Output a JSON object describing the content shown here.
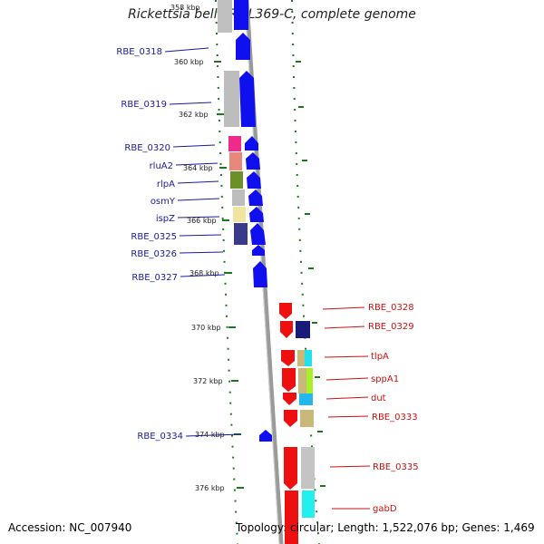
{
  "title": "Rickettsia bellii RML369-C, complete genome",
  "accession_text": "Accession: NC_007940",
  "info_text": "Topology: circular; Length: 1,522,076 bp; Genes: 1,469",
  "colors": {
    "forward": "#1010ee",
    "reverse": "#ee1010",
    "label_forward": "#1a1aa0",
    "label_reverse": "#cc1010",
    "tick": "#1a7a1a",
    "backbone": "#888888"
  },
  "kbp_labels": [
    "358 kbp",
    "360 kbp",
    "362 kbp",
    "364 kbp",
    "366 kbp",
    "368 kbp",
    "370 kbp",
    "372 kbp",
    "374 kbp",
    "376 kbp"
  ],
  "forward_labels": [
    "RBE_0318",
    "RBE_0319",
    "RBE_0320",
    "rluA2",
    "rlpA",
    "osmY",
    "ispZ",
    "RBE_0325",
    "RBE_0326",
    "RBE_0327",
    "RBE_0334"
  ],
  "reverse_labels": [
    "RBE_0328",
    "RBE_0329",
    "tlpA",
    "sppA1",
    "dut",
    "RBE_0333",
    "RBE_0335",
    "gabD"
  ]
}
